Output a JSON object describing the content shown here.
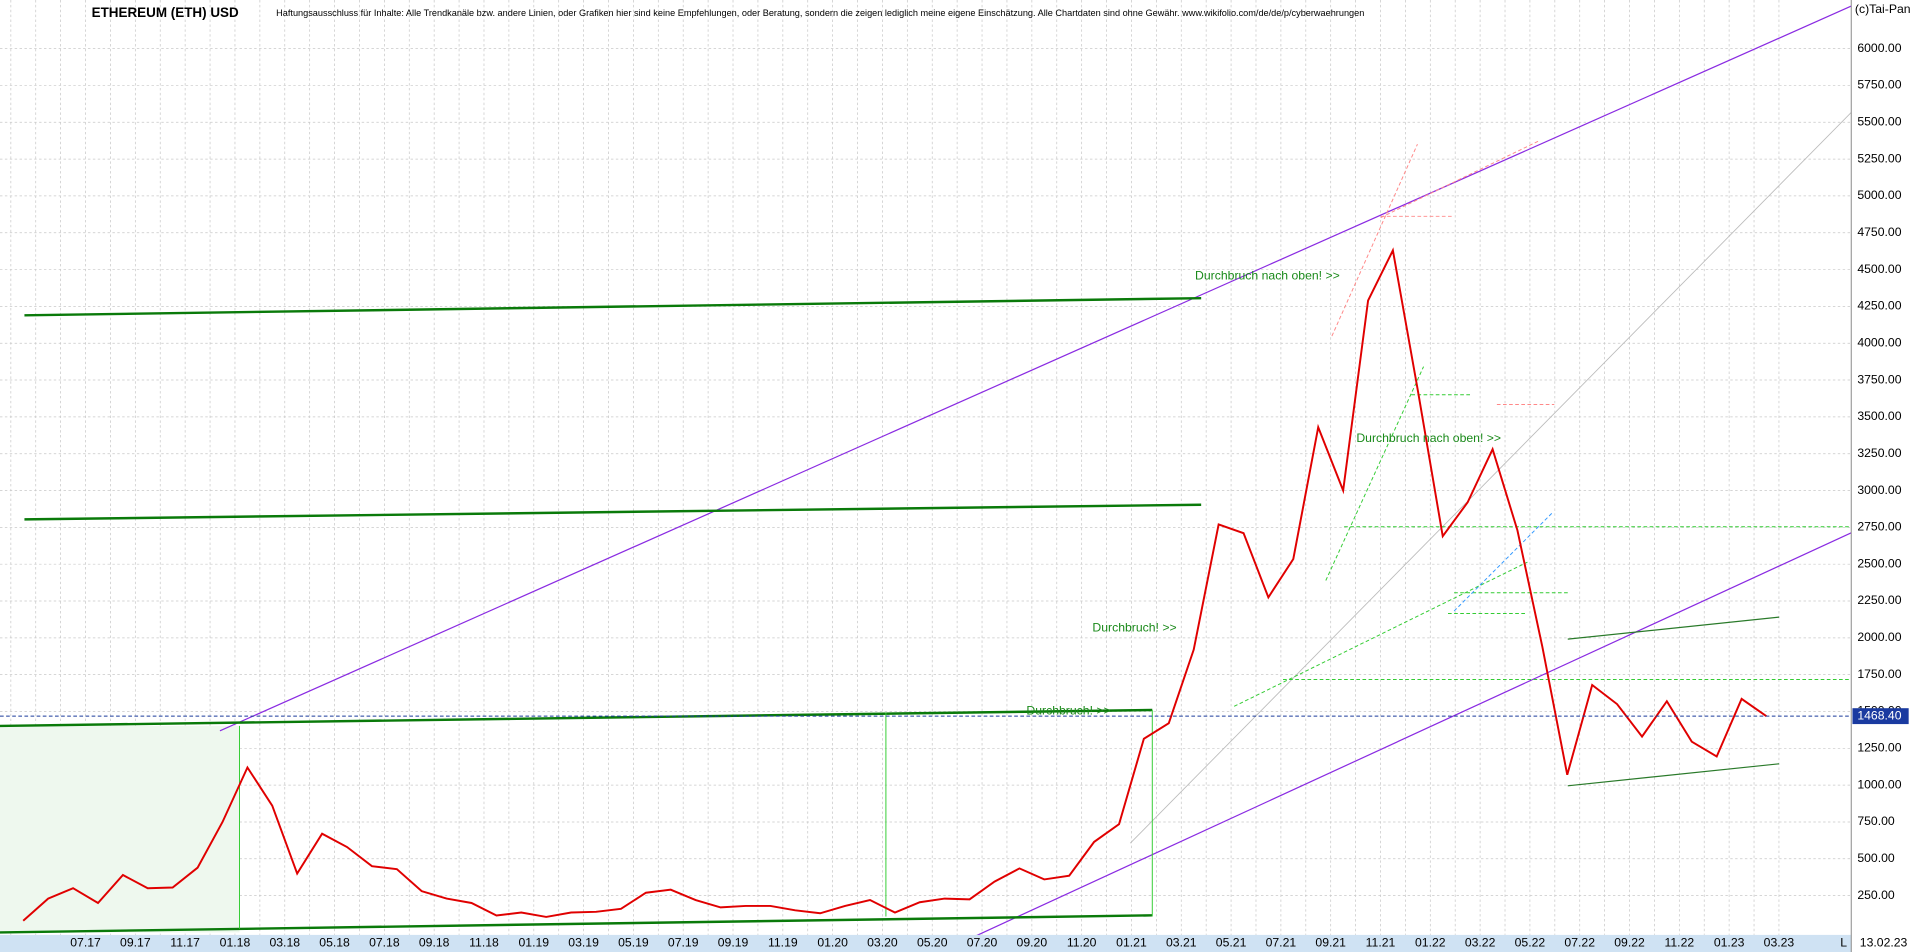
{
  "chart_data": {
    "type": "line",
    "title": "ETHEREUM (ETH) USD",
    "subtitle": "Haftungsausschluss für Inhalte: Alle Trendkanäle bzw. andere Linien, oder Grafiken hier sind keine Empfehlungen, oder Beratung, sondern die zeigen lediglich meine eigene Einschätzung. Alle Chartdaten sind ohne Gewähr. www.wikifolio.com/de/de/p/cyberwaehrungen",
    "copyright": "(c)Tai-Pan",
    "date": "13.02.23",
    "scale_marker": "L",
    "annotations": [
      "Durchbruch nach oben! >>",
      "Durchbruch nach oben! >>",
      "Durchbruch! >>",
      "Durchbruch! >>"
    ],
    "categories": [
      null,
      null,
      null,
      "07.17",
      null,
      "09.17",
      null,
      "11.17",
      null,
      "01.18",
      null,
      "03.18",
      null,
      "05.18",
      null,
      "07.18",
      null,
      "09.18",
      null,
      "11.18",
      null,
      "01.19",
      null,
      "03.19",
      null,
      "05.19",
      null,
      "07.19",
      null,
      "09.19",
      null,
      "11.19",
      null,
      "01.20",
      null,
      "03.20",
      null,
      "05.20",
      null,
      "07.20",
      null,
      "09.20",
      null,
      "11.20",
      null,
      "01.21",
      null,
      "03.21",
      null,
      "05.21",
      null,
      "07.21",
      null,
      "09.21",
      null,
      "11.21",
      null,
      "01.22",
      null,
      "03.22",
      null,
      "05.22",
      null,
      "07.22",
      null,
      "09.22",
      null,
      "11.22",
      null,
      "01.23",
      null,
      "03.23"
    ],
    "series": [
      {
        "name": "ETH",
        "color": "#e00000",
        "values": [
          80,
          230,
          300,
          200,
          390,
          300,
          305,
          440,
          750,
          1120,
          860,
          400,
          670,
          580,
          450,
          430,
          280,
          230,
          200,
          115,
          135,
          105,
          135,
          140,
          160,
          270,
          290,
          220,
          170,
          180,
          180,
          150,
          130,
          180,
          220,
          135,
          205,
          230,
          225,
          345,
          435,
          360,
          385,
          615,
          735,
          1315,
          1420,
          1920,
          2770,
          2710,
          2275,
          2535,
          3430,
          3000,
          4290,
          4630,
          3680,
          2690,
          2920,
          3280,
          2730,
          1940,
          1070,
          1680,
          1550,
          1330,
          1570,
          1295,
          1195,
          1585,
          1468.4,
          null
        ]
      }
    ],
    "last_price": {
      "value": 1468.4,
      "label": "1468.40"
    },
    "ylim": [
      0,
      6330
    ],
    "yticks": [
      {
        "value": 250,
        "label": "250.00"
      },
      {
        "value": 500,
        "label": "500.00"
      },
      {
        "value": 750,
        "label": "750.00"
      },
      {
        "value": 1000,
        "label": "1000.00"
      },
      {
        "value": 1250,
        "label": "1250.00"
      },
      {
        "value": 1500,
        "label": "1500.00"
      },
      {
        "value": 1750,
        "label": "1750.00"
      },
      {
        "value": 2000,
        "label": "2000.00"
      },
      {
        "value": 2250,
        "label": "2250.00"
      },
      {
        "value": 2500,
        "label": "2500.00"
      },
      {
        "value": 2750,
        "label": "2750.00"
      },
      {
        "value": 3000,
        "label": "3000.00"
      },
      {
        "value": 3250,
        "label": "3250.00"
      },
      {
        "value": 3500,
        "label": "3500.00"
      },
      {
        "value": 3750,
        "label": "3750.00"
      },
      {
        "value": 4000,
        "label": "4000.00"
      },
      {
        "value": 4250,
        "label": "4250.00"
      },
      {
        "value": 4500,
        "label": "4500.00"
      },
      {
        "value": 4750,
        "label": "4750.00"
      },
      {
        "value": 5000,
        "label": "5000.00"
      },
      {
        "value": 5250,
        "label": "5250.00"
      },
      {
        "value": 5500,
        "label": "5500.00"
      },
      {
        "value": 5750,
        "label": "5750.00"
      },
      {
        "value": 6000,
        "label": "6000.00"
      }
    ],
    "grid": true
  }
}
